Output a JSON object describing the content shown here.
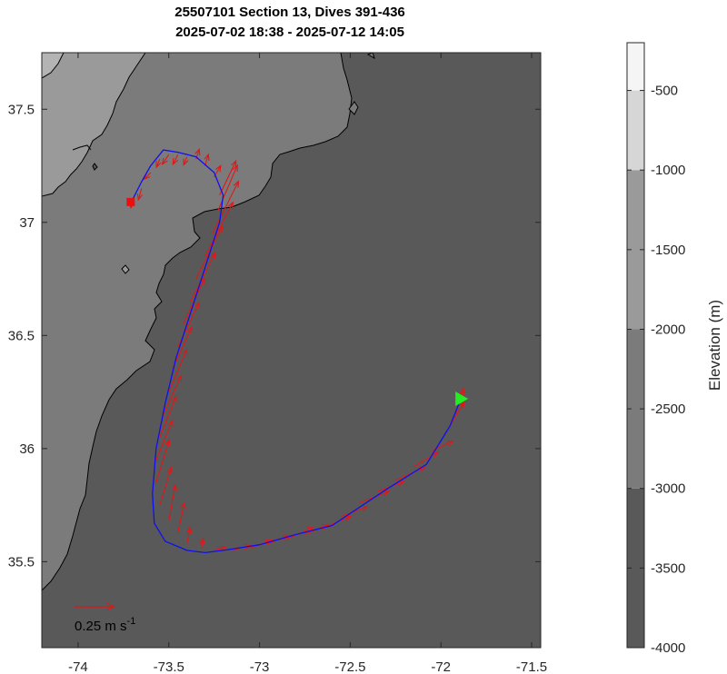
{
  "title": {
    "line1": "25507101 Section 13, Dives 391-436",
    "line2": "2025-07-02 18:38 - 2025-07-12 14:05"
  },
  "colors": {
    "track": "#1010ee",
    "current_vectors": "#e01818",
    "start_marker": "#e81010",
    "end_marker": "#22ee22",
    "contour_line": "#000000",
    "depth_fill": {
      "-4000": "#595959",
      "-3000": "#7b7b7b",
      "-2000": "#9a9a9a",
      "-1500": "#b4b4b4",
      "-1000": "#d6d6d6",
      "-500": "#f5f5f5"
    }
  },
  "map": {
    "lon_range": [
      -74.2,
      -71.45
    ],
    "lat_range": [
      35.12,
      37.75
    ],
    "x_ticks": [
      "-74",
      "-73.5",
      "-73",
      "-72.5",
      "-72",
      "-71.5"
    ],
    "y_ticks": [
      "35.5",
      "36",
      "36.5",
      "37",
      "37.5"
    ],
    "track": [
      [
        -71.9,
        36.2
      ],
      [
        -71.95,
        36.1
      ],
      [
        -72.08,
        35.93
      ],
      [
        -72.3,
        35.82
      ],
      [
        -72.6,
        35.66
      ],
      [
        -72.8,
        35.62
      ],
      [
        -73.0,
        35.575
      ],
      [
        -73.2,
        35.55
      ],
      [
        -73.3,
        35.54
      ],
      [
        -73.4,
        35.55
      ],
      [
        -73.52,
        35.59
      ],
      [
        -73.58,
        35.67
      ],
      [
        -73.59,
        35.8
      ],
      [
        -73.57,
        36.0
      ],
      [
        -73.52,
        36.2
      ],
      [
        -73.46,
        36.4
      ],
      [
        -73.38,
        36.6
      ],
      [
        -73.3,
        36.8
      ],
      [
        -73.22,
        37.0
      ],
      [
        -73.2,
        37.12
      ],
      [
        -73.25,
        37.22
      ],
      [
        -73.35,
        37.29
      ],
      [
        -73.45,
        37.31
      ],
      [
        -73.53,
        37.32
      ],
      [
        -73.6,
        37.25
      ],
      [
        -73.65,
        37.18
      ],
      [
        -73.7,
        37.1
      ]
    ],
    "start_marker": [
      -73.71,
      37.09
    ],
    "end_marker": [
      -71.89,
      36.22
    ],
    "current_vectors": [
      [
        -71.92,
        36.15,
        0.5,
        1.6
      ],
      [
        -71.98,
        36.06,
        1.2,
        2.0
      ],
      [
        -72.05,
        35.99,
        1.3,
        0.6
      ],
      [
        -72.15,
        35.92,
        1.5,
        0.9
      ],
      [
        -72.25,
        35.86,
        1.8,
        0.8
      ],
      [
        -72.35,
        35.81,
        1.6,
        0.6
      ],
      [
        -72.45,
        35.76,
        1.8,
        0.7
      ],
      [
        -72.55,
        35.7,
        1.6,
        0.6
      ],
      [
        -72.65,
        35.65,
        1.7,
        0.7
      ],
      [
        -72.75,
        35.62,
        1.4,
        0.6
      ],
      [
        -72.85,
        35.6,
        1.6,
        0.7
      ],
      [
        -72.95,
        35.58,
        1.2,
        0.5
      ],
      [
        -73.05,
        35.56,
        1.3,
        0.5
      ],
      [
        -73.15,
        35.55,
        1.1,
        0.3
      ],
      [
        -73.25,
        35.55,
        0.7,
        0.2
      ],
      [
        -73.32,
        35.56,
        0.1,
        0.6
      ],
      [
        -73.4,
        35.58,
        0.2,
        1.0
      ],
      [
        -73.45,
        35.63,
        0.4,
        1.8
      ],
      [
        -73.5,
        35.68,
        0.4,
        2.2
      ],
      [
        -73.55,
        35.75,
        0.7,
        2.3
      ],
      [
        -73.57,
        35.85,
        0.8,
        2.6
      ],
      [
        -73.57,
        35.95,
        1.0,
        2.4
      ],
      [
        -73.55,
        36.05,
        1.0,
        2.5
      ],
      [
        -73.53,
        36.15,
        1.1,
        2.4
      ],
      [
        -73.5,
        36.25,
        1.1,
        2.6
      ],
      [
        -73.48,
        36.35,
        1.2,
        2.6
      ],
      [
        -73.45,
        36.45,
        1.3,
        2.7
      ],
      [
        -73.42,
        36.55,
        1.3,
        2.8
      ],
      [
        -73.38,
        36.65,
        1.5,
        3.0
      ],
      [
        -73.35,
        36.75,
        1.6,
        3.2
      ],
      [
        -73.3,
        36.85,
        1.7,
        3.3
      ],
      [
        -73.26,
        36.95,
        1.6,
        3.2
      ],
      [
        -73.23,
        37.05,
        1.2,
        2.8
      ],
      [
        -73.22,
        37.12,
        1.0,
        2.1
      ],
      [
        -73.25,
        37.2,
        0.4,
        0.7
      ],
      [
        -73.3,
        37.25,
        0.2,
        0.7
      ],
      [
        -73.35,
        37.28,
        0.2,
        0.6
      ],
      [
        -73.4,
        37.29,
        -0.2,
        -0.5
      ],
      [
        -73.45,
        37.3,
        -0.3,
        -0.6
      ],
      [
        -73.5,
        37.3,
        -0.4,
        -0.6
      ],
      [
        -73.55,
        37.28,
        -0.2,
        -0.5
      ],
      [
        -73.6,
        37.22,
        -0.4,
        -0.4
      ],
      [
        -73.65,
        37.15,
        -0.2,
        -0.7
      ],
      [
        -73.7,
        37.1,
        -0.1,
        -0.5
      ]
    ],
    "scale_arrow_label": "0.25 m s",
    "scale_arrow_exponent": "-1"
  },
  "colorbar": {
    "label": "Elevation (m)",
    "range": [
      -4000,
      -200
    ],
    "ticks": [
      "-500",
      "-1000",
      "-1500",
      "-2000",
      "-2500",
      "-3000",
      "-3500",
      "-4000"
    ],
    "bands": [
      {
        "from": -4000,
        "to": -3000
      },
      {
        "from": -3000,
        "to": -2000
      },
      {
        "from": -2000,
        "to": -1000
      },
      {
        "from": -1000,
        "to": -500
      },
      {
        "from": -500,
        "to": -200
      }
    ]
  }
}
